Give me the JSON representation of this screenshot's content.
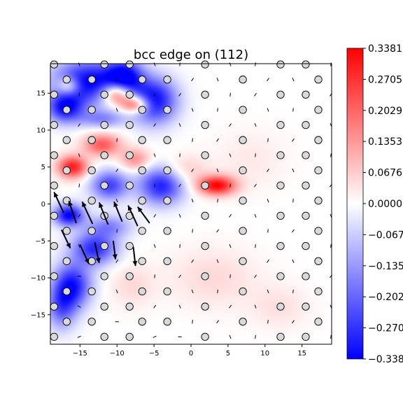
{
  "chart_data": {
    "type": "heatmap",
    "title": "bcc edge on (112)",
    "xlabel": "",
    "ylabel": "",
    "xlim": [
      -19,
      19
    ],
    "ylim": [
      -19,
      19
    ],
    "x_ticks": [
      -15,
      -10,
      -5,
      0,
      5,
      10,
      15
    ],
    "y_ticks": [
      -15,
      -10,
      -5,
      0,
      5,
      10,
      15
    ],
    "x_tick_labels": [
      "−15",
      "−10",
      "−5",
      "0",
      "5",
      "10",
      "15"
    ],
    "y_tick_labels": [
      "−15",
      "−10",
      "−5",
      "0",
      "5",
      "10",
      "15"
    ],
    "colormap": "bwr",
    "colors": {
      "min": "#0000ff",
      "mid": "#ffffff",
      "max": "#ff0000",
      "atom_fill": "#d9d9d9",
      "atom_edge": "#000000",
      "arrow": "#000000"
    },
    "colorbar": {
      "min": -0.3381,
      "max": 0.3381,
      "ticks": [
        0.3381,
        0.2705,
        0.2029,
        0.1353,
        0.0676,
        0.0,
        -0.0676,
        -0.1353,
        -0.2029,
        -0.2705,
        -0.3381
      ],
      "tick_labels": [
        "0.3381",
        "0.2705",
        "0.2029",
        "0.1353",
        "0.0676",
        "0.0000",
        "−0.0676",
        "−0.1353",
        "−0.2029",
        "−0.2705",
        "−0.3381"
      ]
    },
    "field_blobs": [
      {
        "x": -14,
        "y": 16.5,
        "value": -0.34,
        "sx": 4.5,
        "sy": 3
      },
      {
        "x": -9,
        "y": 17,
        "value": -0.34,
        "sx": 2.5,
        "sy": 2.5
      },
      {
        "x": -5,
        "y": 14,
        "value": -0.34,
        "sx": 3,
        "sy": 3
      },
      {
        "x": -17,
        "y": 13,
        "value": -0.3,
        "sx": 2.5,
        "sy": 2
      },
      {
        "x": -10,
        "y": 15,
        "value": 0.34,
        "sx": 2,
        "sy": 1.5
      },
      {
        "x": -16.5,
        "y": 16,
        "value": 0.2,
        "sx": 1.5,
        "sy": 1.2
      },
      {
        "x": -7.5,
        "y": 13.5,
        "value": 0.3,
        "sx": 2.0,
        "sy": 1.2
      },
      {
        "x": -12,
        "y": 11.5,
        "value": -0.15,
        "sx": 3,
        "sy": 1.2
      },
      {
        "x": -12,
        "y": 8,
        "value": 0.22,
        "sx": 2.5,
        "sy": 1.5
      },
      {
        "x": -16,
        "y": 5,
        "value": 0.3,
        "sx": 2,
        "sy": 1.5
      },
      {
        "x": -7.5,
        "y": 6,
        "value": 0.15,
        "sx": 2,
        "sy": 1.5
      },
      {
        "x": -4,
        "y": 2.5,
        "value": -0.3,
        "sx": 3,
        "sy": 2.5
      },
      {
        "x": -11,
        "y": 2.5,
        "value": -0.25,
        "sx": 2.5,
        "sy": 2
      },
      {
        "x": -16.5,
        "y": -1.5,
        "value": -0.34,
        "sx": 2,
        "sy": 1.5
      },
      {
        "x": -11,
        "y": -3,
        "value": -0.15,
        "sx": 3,
        "sy": 1.5
      },
      {
        "x": -13,
        "y": -6,
        "value": -0.28,
        "sx": 3,
        "sy": 2.2
      },
      {
        "x": -16,
        "y": -11,
        "value": -0.3,
        "sx": 2.5,
        "sy": 3
      },
      {
        "x": -17.5,
        "y": -14,
        "value": -0.2,
        "sx": 2,
        "sy": 3
      },
      {
        "x": 3.5,
        "y": 2.5,
        "value": 0.33,
        "sx": 2.5,
        "sy": 1.3
      },
      {
        "x": -1,
        "y": 4.5,
        "value": 0.08,
        "sx": 3,
        "sy": 2
      },
      {
        "x": 3,
        "y": -10,
        "value": 0.05,
        "sx": 6,
        "sy": 4
      },
      {
        "x": 12,
        "y": -14,
        "value": 0.04,
        "sx": 4,
        "sy": 3
      },
      {
        "x": -8,
        "y": -11,
        "value": 0.05,
        "sx": 3,
        "sy": 3
      },
      {
        "x": 8,
        "y": 6,
        "value": 0.03,
        "sx": 5,
        "sy": 4
      }
    ],
    "lattice": {
      "dx": 3.4,
      "dy": 2.05,
      "row_shift": 1.7,
      "origin_x": -18.5,
      "origin_y": -18.0
    },
    "large_arrows": [
      {
        "x": -17.2,
        "y": -1.2,
        "dx": -1.3,
        "dy": 2.8
      },
      {
        "x": -15.5,
        "y": -2.6,
        "dx": -1.0,
        "dy": 3.0
      },
      {
        "x": -13.3,
        "y": -2.7,
        "dx": -1.4,
        "dy": 3.0
      },
      {
        "x": -11.2,
        "y": -2.8,
        "dx": -1.2,
        "dy": 3.0
      },
      {
        "x": -9.3,
        "y": -2.4,
        "dx": -1.1,
        "dy": 2.7
      },
      {
        "x": -7.2,
        "y": -3.0,
        "dx": -1.3,
        "dy": 2.8
      },
      {
        "x": -5.6,
        "y": -2.6,
        "dx": -1.6,
        "dy": 2.2
      },
      {
        "x": -17.5,
        "y": -3.5,
        "dx": 1.2,
        "dy": -2.5
      },
      {
        "x": -15.0,
        "y": -5.5,
        "dx": 1.2,
        "dy": -2.6
      },
      {
        "x": -13.0,
        "y": -5.2,
        "dx": 0.6,
        "dy": -2.8
      },
      {
        "x": -10.5,
        "y": -5.0,
        "dx": 0.3,
        "dy": -2.5
      },
      {
        "x": -7.8,
        "y": -5.8,
        "dx": 0.3,
        "dy": -2.6
      }
    ]
  }
}
